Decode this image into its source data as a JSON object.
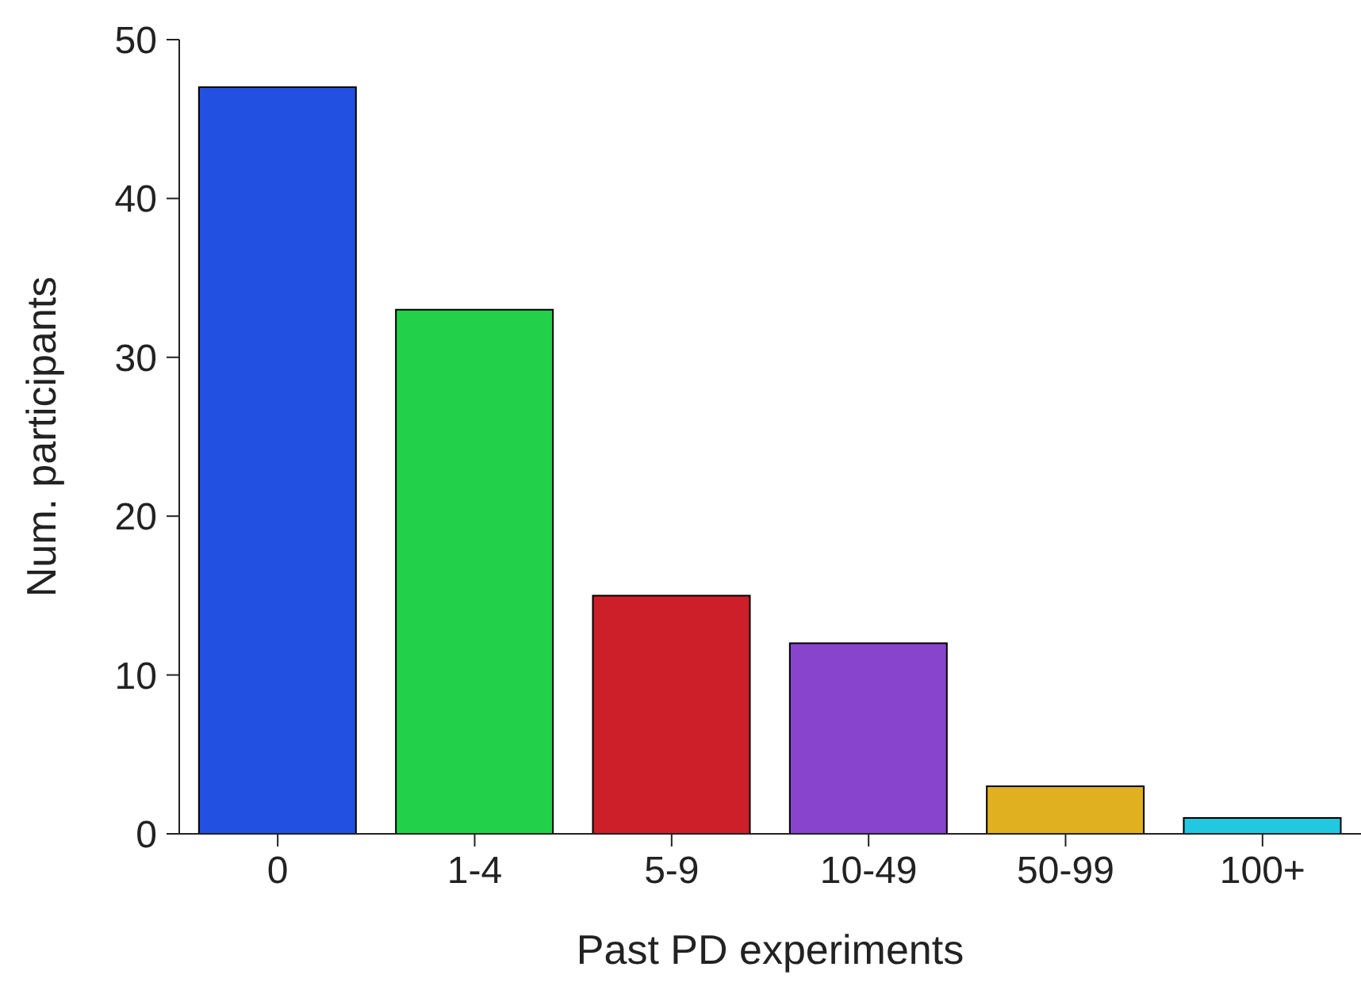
{
  "chart_data": {
    "type": "bar",
    "xlabel": "Past PD experiments",
    "ylabel": "Num. participants",
    "categories": [
      "0",
      "1-4",
      "5-9",
      "10-49",
      "50-99",
      "100+"
    ],
    "values": [
      47,
      33,
      15,
      12,
      3,
      1
    ],
    "colors": [
      "#2250e0",
      "#22d04a",
      "#cc1f2a",
      "#8844cc",
      "#e0b020",
      "#20c8e0"
    ],
    "ylim": [
      0,
      50
    ],
    "yticks": [
      0,
      10,
      20,
      30,
      40,
      50
    ],
    "grid": false,
    "legend": false
  }
}
